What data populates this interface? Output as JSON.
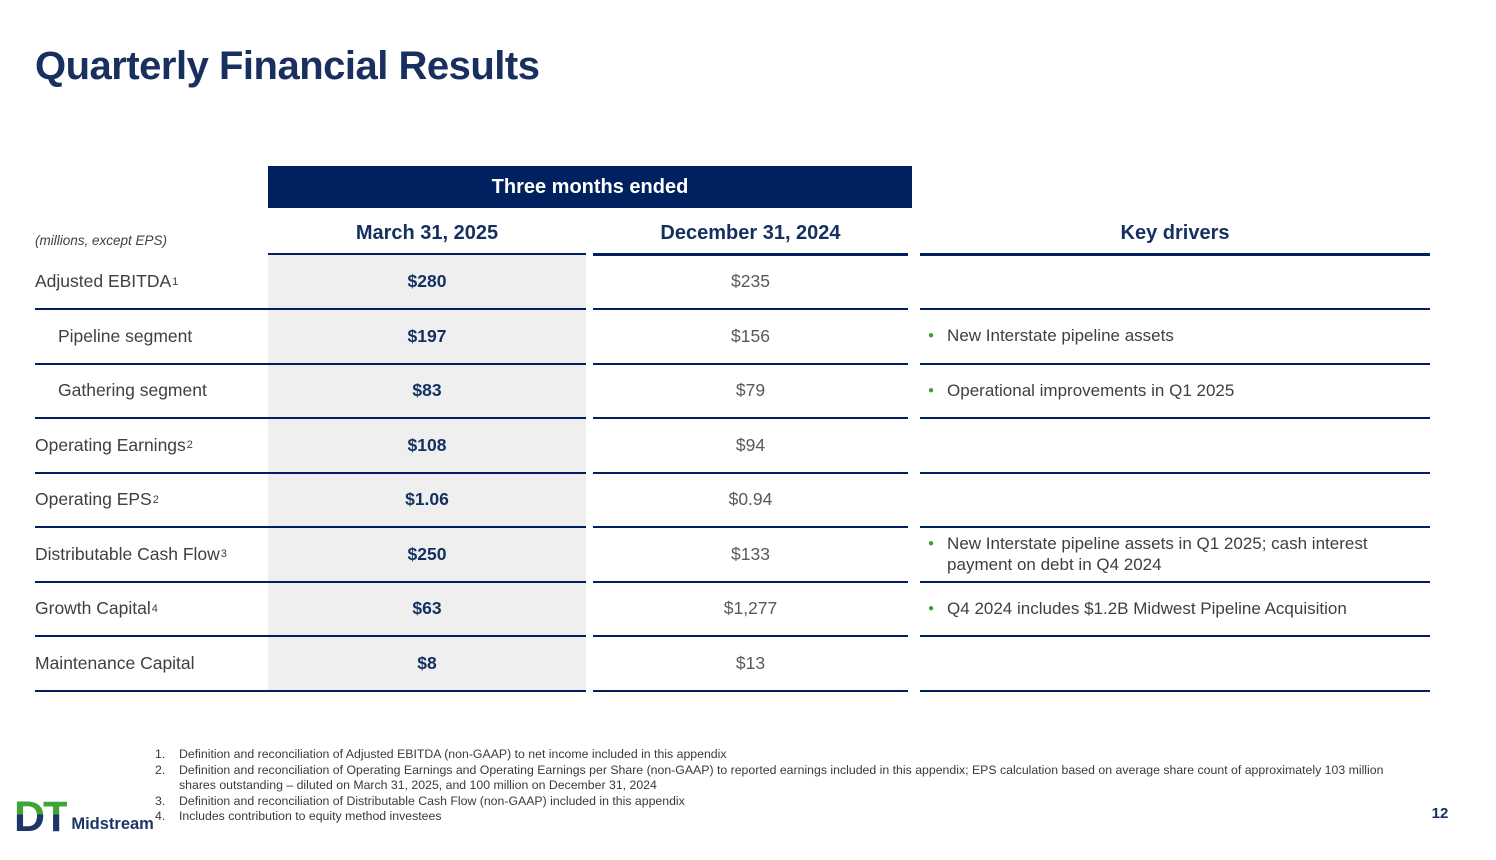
{
  "title": "Quarterly Financial Results",
  "table": {
    "band_header": "Three months ended",
    "units_note": "(millions, except EPS)",
    "columns": [
      "March 31, 2025",
      "December 31, 2024"
    ],
    "key_drivers_header": "Key drivers",
    "rows": [
      {
        "label": "Adjusted EBITDA",
        "sup": "1",
        "indent": false,
        "march": "$280",
        "dec": "$235",
        "driver": ""
      },
      {
        "label": "Pipeline segment",
        "sup": "",
        "indent": true,
        "march": "$197",
        "dec": "$156",
        "driver": "New Interstate pipeline assets"
      },
      {
        "label": "Gathering segment",
        "sup": "",
        "indent": true,
        "march": "$83",
        "dec": "$79",
        "driver": "Operational improvements in Q1 2025"
      },
      {
        "label": "Operating Earnings",
        "sup": "2",
        "indent": false,
        "march": "$108",
        "dec": "$94",
        "driver": ""
      },
      {
        "label": "Operating EPS",
        "sup": "2",
        "indent": false,
        "march": "$1.06",
        "dec": "$0.94",
        "driver": ""
      },
      {
        "label": "Distributable Cash Flow",
        "sup": "3",
        "indent": false,
        "march": "$250",
        "dec": "$133",
        "driver": "New Interstate pipeline assets in Q1 2025; cash interest payment on debt in Q4 2024"
      },
      {
        "label": "Growth Capital",
        "sup": "4",
        "indent": false,
        "march": "$63",
        "dec": "$1,277",
        "driver": "Q4 2024 includes $1.2B Midwest Pipeline Acquisition"
      },
      {
        "label": "Maintenance Capital",
        "sup": "",
        "indent": false,
        "march": "$8",
        "dec": "$13",
        "driver": ""
      }
    ]
  },
  "footnotes": [
    {
      "num": "1.",
      "text": "Definition and reconciliation of Adjusted EBITDA (non-GAAP) to net income included in this appendix"
    },
    {
      "num": "2.",
      "text": "Definition and reconciliation of Operating Earnings and Operating Earnings per Share (non-GAAP) to reported earnings included in this appendix; EPS calculation based on average share count of approximately 103 million shares outstanding – diluted on March 31, 2025, and 100 million on December 31, 2024"
    },
    {
      "num": "3.",
      "text": "Definition and reconciliation of Distributable Cash Flow (non-GAAP) included in this appendix"
    },
    {
      "num": "4.",
      "text": "Includes contribution to equity method investees"
    }
  ],
  "footer": {
    "logo_dt": "DT",
    "logo_word": "Midstream",
    "page_number": "12"
  },
  "colors": {
    "navy": "#002060",
    "title_navy": "#182f60",
    "green_bullet": "#3f9c35",
    "logo_green": "#3fa435",
    "value_gray": "#595959",
    "label_gray": "#3f3f3f",
    "march_col_bg": "#efefef"
  }
}
